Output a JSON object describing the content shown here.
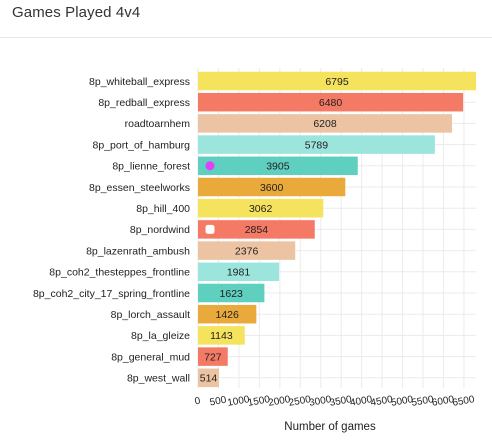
{
  "panel": {
    "title": "Games Played 4v4"
  },
  "chart_data": {
    "type": "bar",
    "orientation": "horizontal",
    "title": "",
    "xlabel": "Number of games",
    "ylabel": "",
    "xlim": [
      0,
      6795
    ],
    "xticks": [
      0,
      500,
      1000,
      1500,
      2000,
      2500,
      3000,
      3500,
      4000,
      4500,
      5000,
      5500,
      6000,
      6500
    ],
    "grid": true,
    "categories": [
      "8p_whiteball_express",
      "8p_redball_express",
      "roadtoarnhem",
      "8p_port_of_hamburg",
      "8p_lienne_forest",
      "8p_essen_steelworks",
      "8p_hill_400",
      "8p_nordwind",
      "8p_lazenrath_ambush",
      "8p_coh2_thesteppes_frontline",
      "8p_coh2_city_17_spring_frontline",
      "8p_lorch_assault",
      "8p_la_gleize",
      "8p_general_mud",
      "8p_west_wall"
    ],
    "values": [
      6795,
      6480,
      6208,
      5789,
      3905,
      3600,
      3062,
      2854,
      2376,
      1981,
      1623,
      1426,
      1143,
      727,
      514
    ],
    "colors": [
      "#f5e25d",
      "#f47a66",
      "#ecc4a3",
      "#9be5dc",
      "#5fcfbf",
      "#e9a93b",
      "#f5e25d",
      "#f47a66",
      "#ecc4a3",
      "#9be5dc",
      "#5fcfbf",
      "#e9a93b",
      "#f5e25d",
      "#f47a66",
      "#ecc4a3"
    ],
    "markers": [
      {
        "category": "8p_lienne_forest",
        "color": "#e040fb",
        "shape": "circle"
      },
      {
        "category": "8p_nordwind",
        "color": "#ffffff",
        "shape": "rounded-square"
      }
    ]
  }
}
